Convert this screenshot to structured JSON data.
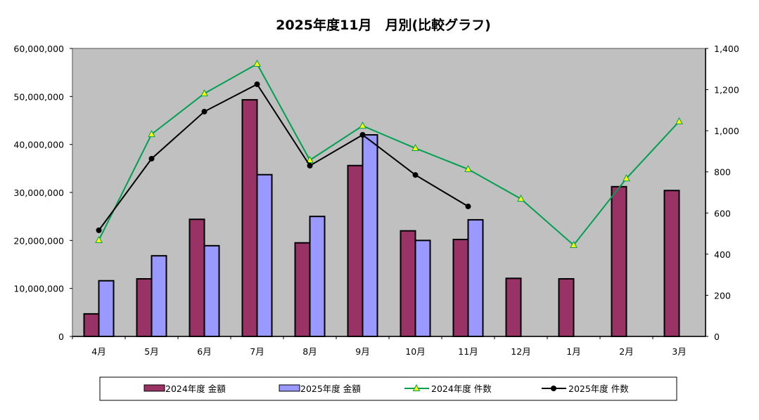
{
  "chart_data": {
    "type": "bar+line",
    "title": "2025年度11月　月別(比較グラフ)",
    "categories": [
      "4月",
      "5月",
      "6月",
      "7月",
      "8月",
      "9月",
      "10月",
      "11月",
      "12月",
      "1月",
      "2月",
      "3月"
    ],
    "y_left": {
      "min": 0,
      "max": 60000000,
      "ticks": [
        "0",
        "10,000,000",
        "20,000,000",
        "30,000,000",
        "40,000,000",
        "50,000,000",
        "60,000,000"
      ]
    },
    "y_right": {
      "min": 0,
      "max": 1400,
      "ticks": [
        "0",
        "200",
        "400",
        "600",
        "800",
        "1,000",
        "1,200",
        "1,400"
      ]
    },
    "series": [
      {
        "name": "2024年度 金額",
        "type": "bar",
        "axis": "left",
        "color": "#993366",
        "values": [
          4700000,
          12000000,
          24400000,
          49300000,
          19500000,
          35600000,
          22000000,
          20200000,
          12100000,
          12000000,
          31200000,
          30400000
        ]
      },
      {
        "name": "2025年度 金額",
        "type": "bar",
        "axis": "left",
        "color": "#9999FF",
        "values": [
          11600000,
          16800000,
          18900000,
          33700000,
          25000000,
          42000000,
          20000000,
          24300000,
          null,
          null,
          null,
          null
        ]
      },
      {
        "name": "2024年度 件数",
        "type": "line",
        "axis": "right",
        "color": "#00A050",
        "marker": "triangle",
        "values": [
          468,
          983,
          1181,
          1325,
          857,
          1024,
          915,
          813,
          669,
          444,
          768,
          1045
        ]
      },
      {
        "name": "2025年度 件数",
        "type": "line",
        "axis": "right",
        "color": "#000000",
        "marker": "circle",
        "values": [
          516,
          864,
          1093,
          1226,
          830,
          980,
          785,
          632,
          null,
          null,
          null,
          null
        ]
      }
    ],
    "plot_background": "#C0C0C0",
    "legend_position": "bottom",
    "grid": false
  }
}
